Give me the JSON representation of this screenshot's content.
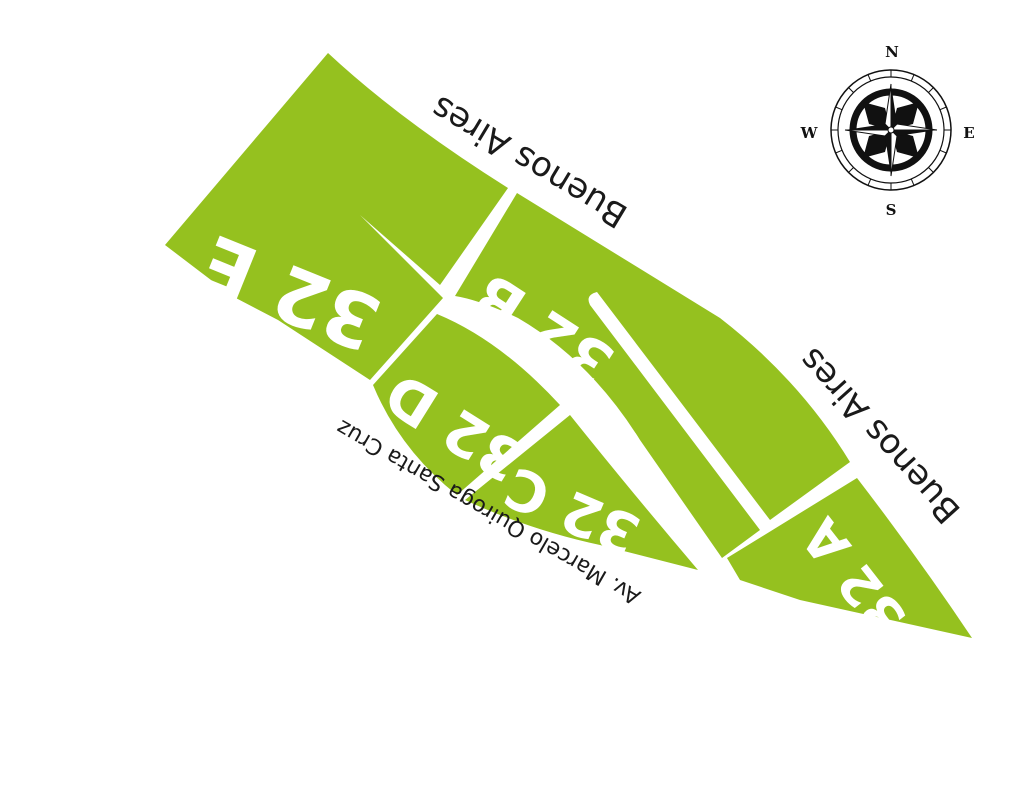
{
  "colors": {
    "lot_fill": "#95c11f",
    "lot_text": "#ffffff",
    "background": "#ffffff",
    "street_text": "#1a1a1a"
  },
  "lots": [
    {
      "id": "32A",
      "label": "32 A"
    },
    {
      "id": "32B",
      "label": "32 B"
    },
    {
      "id": "32C",
      "label": "32 C"
    },
    {
      "id": "32D",
      "label": "32 D"
    },
    {
      "id": "32E",
      "label": "32 E"
    }
  ],
  "streets": {
    "north_upper": "Buenos Aires",
    "north_lower": "Buenos Aires",
    "avenue": "Av. Marcelo Quiroga Santa Cruz"
  },
  "compass": {
    "icon": "compass-rose-icon",
    "north": "N",
    "south": "S",
    "east": "E",
    "west": "W"
  }
}
